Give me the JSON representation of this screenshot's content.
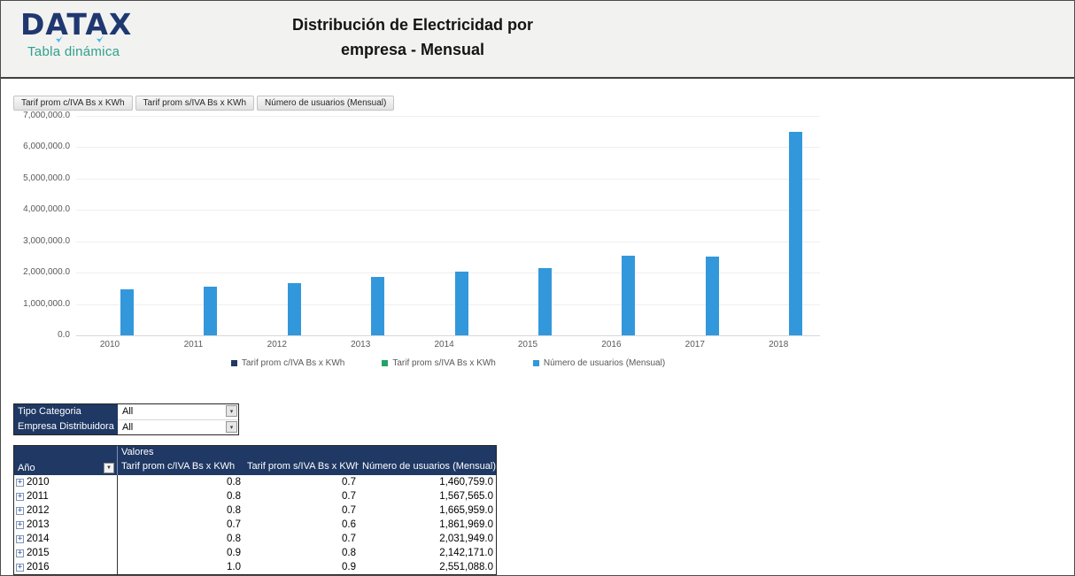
{
  "header": {
    "logo": "DATAX",
    "logo_subtitle": "Tabla dinámica",
    "title_line1": "Distribución de Electricidad por",
    "title_line2": "empresa - Mensual"
  },
  "colors": {
    "navy": "#1F3864",
    "teal": "#2FA08C",
    "bar_blue": "#3398DB",
    "green": "#21A366"
  },
  "chart": {
    "field_buttons": [
      "Tarif prom c/IVA Bs x KWh",
      "Tarif prom s/IVA Bs x KWh",
      "Número de usuarios (Mensual)"
    ]
  },
  "chart_data": {
    "type": "bar",
    "categories": [
      "2010",
      "2011",
      "2012",
      "2013",
      "2014",
      "2015",
      "2016",
      "2017",
      "2018"
    ],
    "series": [
      {
        "name": "Tarif prom c/IVA Bs x KWh",
        "color": "#1F3864",
        "values": [
          0.8,
          0.8,
          0.8,
          0.7,
          0.8,
          0.9,
          1.0,
          null,
          null
        ]
      },
      {
        "name": "Tarif prom s/IVA Bs x KWh",
        "color": "#21A366",
        "values": [
          0.7,
          0.7,
          0.7,
          0.6,
          0.7,
          0.8,
          0.9,
          null,
          null
        ]
      },
      {
        "name": "Número de usuarios (Mensual)",
        "color": "#3398DB",
        "values": [
          1460759,
          1567565,
          1665959,
          1861969,
          2031949,
          2142171,
          2551088,
          2500000,
          6480000
        ]
      }
    ],
    "ylim": [
      0,
      7000000
    ],
    "ytick_step": 1000000,
    "ytick_labels": [
      "0.0",
      "1,000,000.0",
      "2,000,000.0",
      "3,000,000.0",
      "4,000,000.0",
      "5,000,000.0",
      "6,000,000.0",
      "7,000,000.0"
    ],
    "grid": true,
    "legend_position": "bottom"
  },
  "filters": [
    {
      "label": "Tipo Categoria",
      "value": "All"
    },
    {
      "label": "Empresa Distribuidora",
      "value": "All"
    }
  ],
  "table": {
    "values_header": "Valores",
    "row_header": "Año",
    "columns": [
      "Tarif prom c/IVA Bs x KWh",
      "Tarif prom s/IVA Bs x KWh",
      "Número de usuarios (Mensual)"
    ],
    "rows": [
      {
        "year": "2010",
        "c_iva": "0.8",
        "s_iva": "0.7",
        "usuarios": "1,460,759.0"
      },
      {
        "year": "2011",
        "c_iva": "0.8",
        "s_iva": "0.7",
        "usuarios": "1,567,565.0"
      },
      {
        "year": "2012",
        "c_iva": "0.8",
        "s_iva": "0.7",
        "usuarios": "1,665,959.0"
      },
      {
        "year": "2013",
        "c_iva": "0.7",
        "s_iva": "0.6",
        "usuarios": "1,861,969.0"
      },
      {
        "year": "2014",
        "c_iva": "0.8",
        "s_iva": "0.7",
        "usuarios": "2,031,949.0"
      },
      {
        "year": "2015",
        "c_iva": "0.9",
        "s_iva": "0.8",
        "usuarios": "2,142,171.0"
      },
      {
        "year": "2016",
        "c_iva": "1.0",
        "s_iva": "0.9",
        "usuarios": "2,551,088.0"
      }
    ]
  }
}
